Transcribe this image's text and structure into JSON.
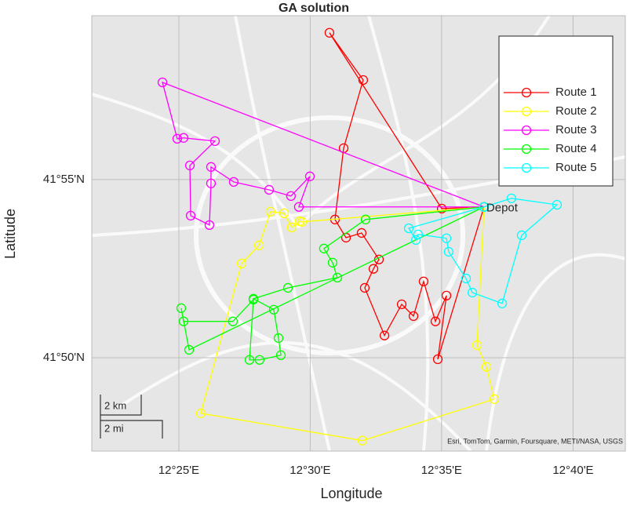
{
  "chart_data": {
    "type": "line",
    "title": "GA solution",
    "x_label": "Longitude",
    "y_label": "Latitude",
    "xlim": [
      12.3615,
      12.6998
    ],
    "ylim": [
      41.7896,
      41.9934
    ],
    "xticks": [
      {
        "value": 12.4167,
        "label": "12°25'E"
      },
      {
        "value": 12.5,
        "label": "12°30'E"
      },
      {
        "value": 12.5833,
        "label": "12°35'E"
      },
      {
        "value": 12.6667,
        "label": "12°40'E"
      }
    ],
    "yticks": [
      {
        "value": 41.8333,
        "label": "41°50'N"
      },
      {
        "value": 41.9167,
        "label": "41°55'N"
      }
    ],
    "grid": true,
    "legend_position": "upper-right",
    "annotations": [
      {
        "text": "Depot",
        "x": 12.6102,
        "y": 41.9039
      }
    ],
    "scale_bar": [
      "2 km",
      "2 mi"
    ],
    "attribution": "Esri, TomTom, Garmin, Foursquare, METI/NASA, USGS",
    "series": [
      {
        "name": "Route 1",
        "color": "#ff0000",
        "x": [
          12.6102,
          12.5834,
          12.5122,
          12.5336,
          12.5212,
          12.5157,
          12.5227,
          12.5326,
          12.5436,
          12.5401,
          12.5346,
          12.5471,
          12.558,
          12.5655,
          12.5719,
          12.5794,
          12.5864,
          12.5809,
          12.6102
        ],
        "values": [
          41.9039,
          41.9031,
          41.9854,
          41.9633,
          41.9314,
          41.898,
          41.8895,
          41.8917,
          41.8793,
          41.8749,
          41.866,
          41.8437,
          41.8583,
          41.8528,
          41.869,
          41.8503,
          41.8624,
          41.8326,
          41.9039
        ]
      },
      {
        "name": "Route 2",
        "color": "#ffff00",
        "x": [
          12.6102,
          12.4948,
          12.4933,
          12.4883,
          12.4834,
          12.4749,
          12.4675,
          12.4565,
          12.4306,
          12.5331,
          12.6167,
          12.6117,
          12.6058,
          12.6102
        ],
        "values": [
          41.9039,
          41.8969,
          41.8972,
          41.8943,
          41.9009,
          41.9017,
          41.8859,
          41.8774,
          41.8073,
          41.7945,
          41.8139,
          41.829,
          41.8392,
          41.9039
        ]
      },
      {
        "name": "Route 3",
        "color": "#ff00ff",
        "x": [
          12.6102,
          12.4063,
          12.4157,
          12.4197,
          12.4396,
          12.4237,
          12.4242,
          12.4361,
          12.4371,
          12.4371,
          12.4515,
          12.4739,
          12.4878,
          12.4998,
          12.4928,
          12.6102
        ],
        "values": [
          41.9039,
          41.9622,
          41.9358,
          41.9362,
          41.9347,
          41.9233,
          41.8998,
          41.8954,
          41.9149,
          41.9226,
          41.9156,
          41.9119,
          41.909,
          41.9182,
          41.9039,
          41.9039
        ]
      },
      {
        "name": "Route 4",
        "color": "#00ff00",
        "x": [
          12.6102,
          12.5351,
          12.5087,
          12.5142,
          12.5172,
          12.4859,
          12.464,
          12.4769,
          12.4799,
          12.4814,
          12.4679,
          12.4615,
          12.464,
          12.451,
          12.4197,
          12.4182,
          12.4232,
          12.6102
        ],
        "values": [
          41.9039,
          41.898,
          41.8844,
          41.8778,
          41.8708,
          41.866,
          41.8609,
          41.8558,
          41.8425,
          41.8345,
          41.8323,
          41.8323,
          41.8605,
          41.8503,
          41.8503,
          41.8565,
          41.837,
          41.9039
        ]
      },
      {
        "name": "Route 5",
        "color": "#00ffff",
        "x": [
          12.6102,
          12.6276,
          12.6565,
          12.6341,
          12.6217,
          12.6028,
          12.5988,
          12.5878,
          12.5864,
          12.5684,
          12.567,
          12.5625,
          12.6102
        ],
        "values": [
          41.9039,
          41.9079,
          41.9049,
          41.8906,
          41.8587,
          41.8638,
          41.8704,
          41.8829,
          41.8892,
          41.891,
          41.8884,
          41.8939,
          41.9039
        ]
      }
    ]
  }
}
